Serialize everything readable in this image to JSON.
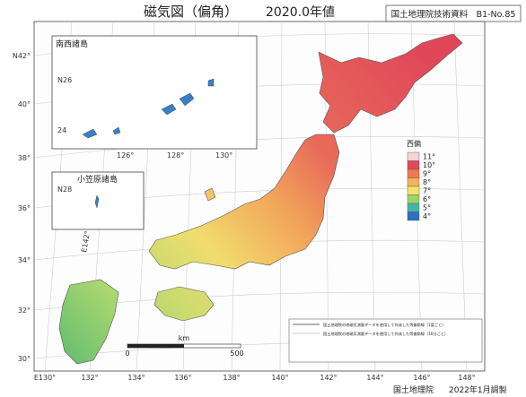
{
  "title": {
    "main": "磁気図（偏角）",
    "epoch": "2020.0年値"
  },
  "header_box": "国土地理院技術資料　B1-No.85",
  "insets": [
    "南西諸島",
    "小笠原諸島"
  ],
  "legend": {
    "title": "西偏",
    "items": [
      {
        "label": "11°",
        "color": "#f4d3d6"
      },
      {
        "label": "10°",
        "color": "#e0485a"
      },
      {
        "label": "9°",
        "color": "#ee7a4e"
      },
      {
        "label": "8°",
        "color": "#f5b25a"
      },
      {
        "label": "7°",
        "color": "#f2e36c"
      },
      {
        "label": "6°",
        "color": "#9fd46a"
      },
      {
        "label": "5°",
        "color": "#3fb7a8"
      },
      {
        "label": "4°",
        "color": "#2f6fc0"
      }
    ]
  },
  "lat_labels": [
    "N42°",
    "40°",
    "38°",
    "36°",
    "34°",
    "32°",
    "30°"
  ],
  "lon_labels": [
    "E130°",
    "132°",
    "134°",
    "136°",
    "138°",
    "140°",
    "142°",
    "144°",
    "146°",
    "148°"
  ],
  "inset_labels": [
    "N26",
    "24",
    "126°",
    "128°",
    "130°",
    "N28",
    "E142°"
  ],
  "scale": {
    "unit": "km",
    "start": "0",
    "end": "500"
  },
  "notes": [
    "国土地理院の地磁気測量データを使用して作成した等偏角線（1度ごと）",
    "国土地理院の地磁気測量データを使用して作成した等偏角線（10分ごと）"
  ],
  "footer": {
    "org": "国土地理院",
    "date": "2022年1月調製"
  }
}
